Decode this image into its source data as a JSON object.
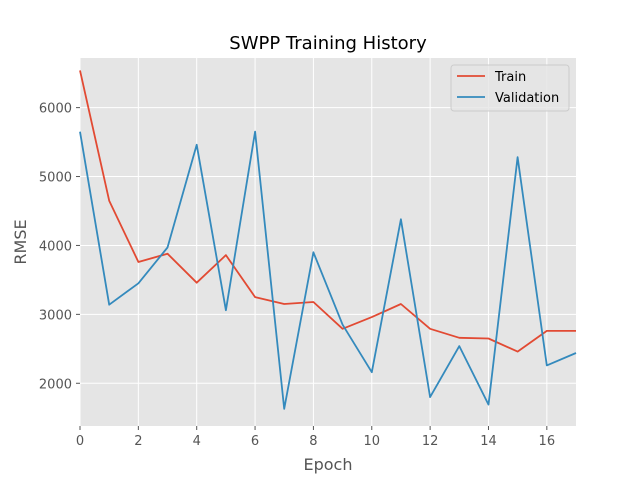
{
  "chart_data": {
    "type": "line",
    "title": "SWPP Training History",
    "xlabel": "Epoch",
    "ylabel": "RMSE",
    "xlim": [
      0,
      17
    ],
    "ylim": [
      1380,
      6720
    ],
    "xticks": [
      0,
      2,
      4,
      6,
      8,
      10,
      12,
      14,
      16
    ],
    "yticks": [
      2000,
      3000,
      4000,
      5000,
      6000
    ],
    "grid": true,
    "legend_position": "top-right",
    "x": [
      0,
      1,
      2,
      3,
      4,
      5,
      6,
      7,
      8,
      9,
      10,
      11,
      12,
      13,
      14,
      15,
      16,
      17
    ],
    "series": [
      {
        "name": "Train",
        "color": "#E24A33",
        "values": [
          6540,
          4650,
          3760,
          3880,
          3460,
          3860,
          3250,
          3150,
          3180,
          2790,
          2960,
          3150,
          2790,
          2660,
          2650,
          2460,
          2760,
          2760
        ]
      },
      {
        "name": "Validation",
        "color": "#348ABD",
        "values": [
          5650,
          3140,
          3450,
          3970,
          5460,
          3060,
          5650,
          1630,
          3900,
          2850,
          2160,
          4380,
          1800,
          2540,
          1690,
          5280,
          2260,
          2440
        ]
      }
    ],
    "colors": {
      "plot_background": "#E5E5E5",
      "grid": "#FFFFFF",
      "legend_border": "#CCCCCC"
    }
  }
}
